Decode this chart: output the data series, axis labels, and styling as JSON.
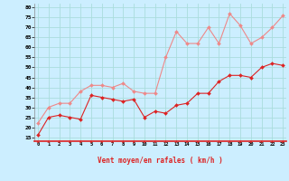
{
  "hours": [
    0,
    1,
    2,
    3,
    4,
    5,
    6,
    7,
    8,
    9,
    10,
    11,
    12,
    13,
    14,
    15,
    16,
    17,
    18,
    19,
    20,
    21,
    22,
    23
  ],
  "wind_avg": [
    16,
    25,
    26,
    25,
    24,
    36,
    35,
    34,
    33,
    34,
    25,
    28,
    27,
    31,
    32,
    37,
    37,
    43,
    46,
    46,
    45,
    50,
    52,
    51
  ],
  "wind_gust": [
    22,
    30,
    32,
    32,
    38,
    41,
    41,
    40,
    42,
    38,
    37,
    37,
    55,
    68,
    62,
    62,
    70,
    62,
    77,
    71,
    62,
    65,
    70,
    76
  ],
  "bg_color": "#cceeff",
  "grid_color": "#aadddd",
  "avg_color": "#dd2222",
  "gust_color": "#ee8888",
  "xlabel": "Vent moyen/en rafales ( km/h )",
  "ylabel_values": [
    15,
    20,
    25,
    30,
    35,
    40,
    45,
    50,
    55,
    60,
    65,
    70,
    75,
    80
  ],
  "ylim": [
    13,
    82
  ],
  "xlim": [
    -0.3,
    23.3
  ],
  "figwidth": 3.2,
  "figheight": 2.0,
  "dpi": 100
}
